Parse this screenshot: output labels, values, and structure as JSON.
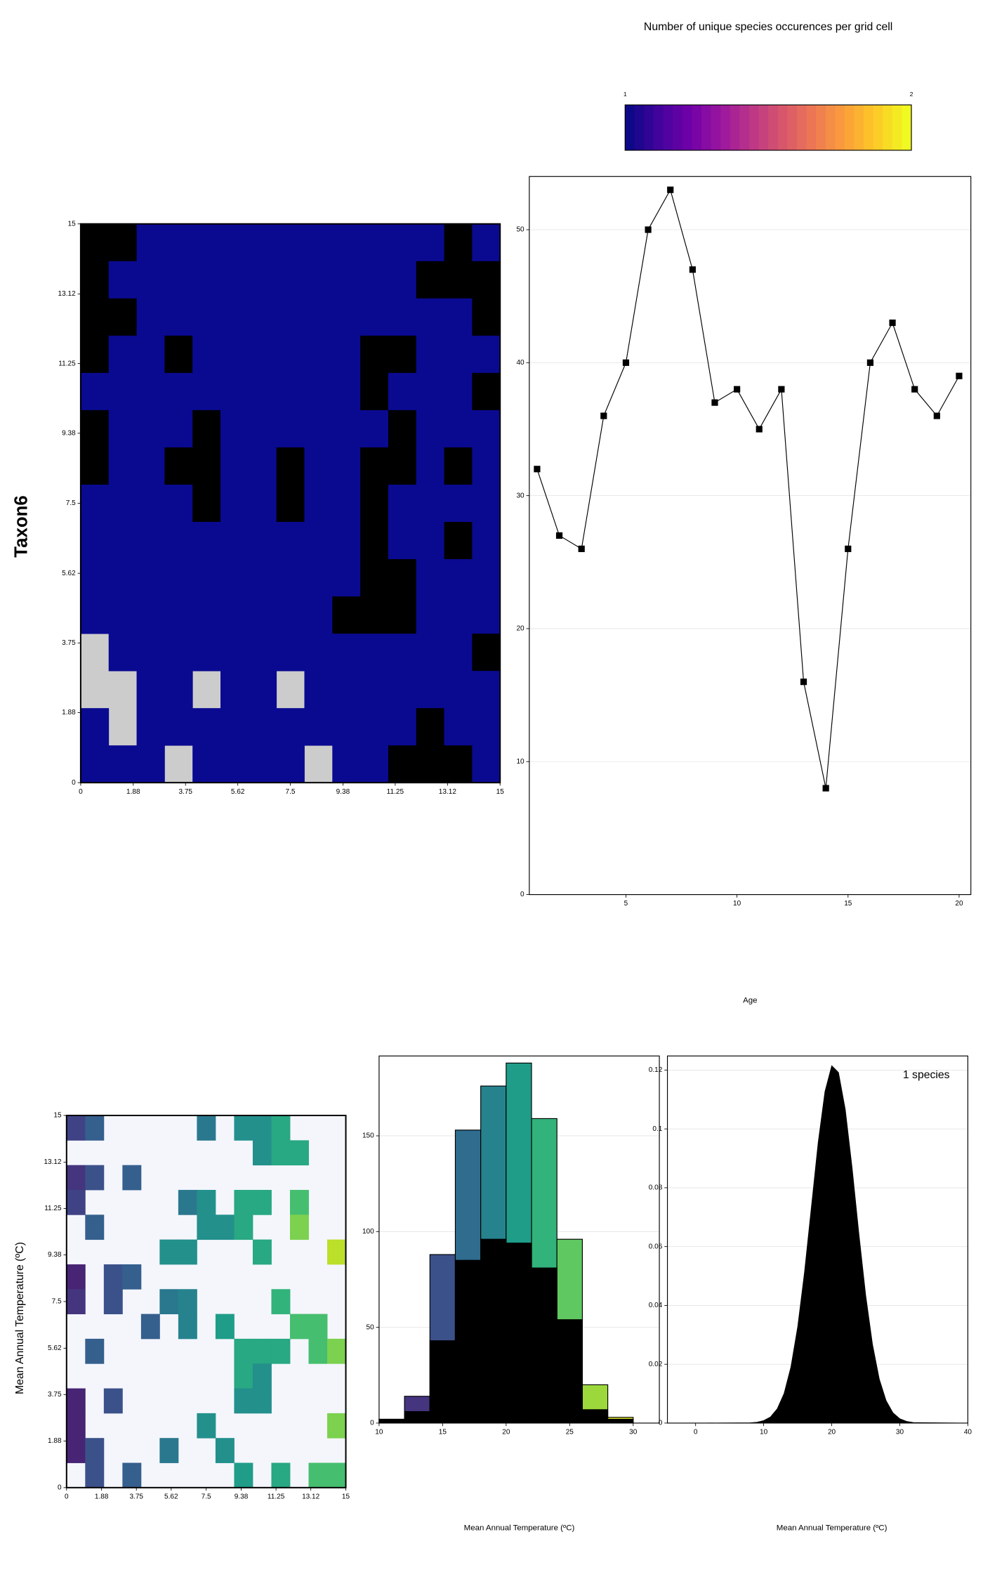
{
  "chart_data": [
    {
      "type": "heatmap",
      "row_label": "Taxon6",
      "xlim": [
        0,
        15
      ],
      "ylim": [
        0,
        15
      ],
      "xticks": [
        0,
        1.88,
        3.75,
        5.62,
        7.5,
        9.38,
        11.25,
        13.12,
        15
      ],
      "yticks": [
        0,
        1.88,
        3.75,
        5.62,
        7.5,
        9.38,
        11.25,
        13.12,
        15
      ],
      "cell_colors": [
        "#000000",
        "#0a0a91"
      ],
      "missing_color": "#cccccc",
      "cells": [
        [
          0,
          0,
          1,
          1,
          1,
          1,
          1,
          1,
          1,
          1,
          1,
          1,
          1,
          0,
          1
        ],
        [
          0,
          1,
          1,
          1,
          1,
          1,
          1,
          1,
          1,
          1,
          1,
          1,
          0,
          0,
          0
        ],
        [
          0,
          0,
          1,
          1,
          1,
          1,
          1,
          1,
          1,
          1,
          1,
          1,
          1,
          1,
          0
        ],
        [
          0,
          1,
          1,
          0,
          1,
          1,
          1,
          1,
          1,
          1,
          0,
          0,
          1,
          1,
          1
        ],
        [
          1,
          1,
          1,
          1,
          1,
          1,
          1,
          1,
          1,
          1,
          0,
          1,
          1,
          1,
          0
        ],
        [
          0,
          1,
          1,
          1,
          0,
          1,
          1,
          1,
          1,
          1,
          1,
          0,
          1,
          1,
          1
        ],
        [
          0,
          1,
          1,
          0,
          0,
          1,
          1,
          0,
          1,
          1,
          0,
          0,
          1,
          0,
          1
        ],
        [
          1,
          1,
          1,
          1,
          0,
          1,
          1,
          0,
          1,
          1,
          0,
          1,
          1,
          1,
          1
        ],
        [
          1,
          1,
          1,
          1,
          1,
          1,
          1,
          1,
          1,
          1,
          0,
          1,
          1,
          0,
          1
        ],
        [
          1,
          1,
          1,
          1,
          1,
          1,
          1,
          1,
          1,
          1,
          0,
          0,
          1,
          1,
          1
        ],
        [
          1,
          1,
          1,
          1,
          1,
          1,
          1,
          1,
          1,
          0,
          0,
          0,
          1,
          1,
          1
        ],
        [
          null,
          1,
          1,
          1,
          1,
          1,
          1,
          1,
          1,
          1,
          1,
          1,
          1,
          1,
          0
        ],
        [
          null,
          null,
          1,
          1,
          null,
          1,
          1,
          null,
          1,
          1,
          1,
          1,
          1,
          1,
          1
        ],
        [
          1,
          null,
          1,
          1,
          1,
          1,
          1,
          1,
          1,
          1,
          1,
          1,
          0,
          1,
          1
        ],
        [
          1,
          1,
          1,
          null,
          1,
          1,
          1,
          1,
          null,
          1,
          1,
          0,
          0,
          0,
          1
        ]
      ]
    },
    {
      "type": "colorbar",
      "title": "Number of unique species occurences per grid cell",
      "ticks": [
        1,
        2
      ],
      "colormap": "plasma"
    },
    {
      "type": "line",
      "xlabel": "Age",
      "color": "#000000",
      "grid": true,
      "x": [
        1,
        2,
        3,
        4,
        5,
        6,
        7,
        8,
        9,
        10,
        11,
        12,
        13,
        14,
        15,
        16,
        17,
        18,
        19,
        20
      ],
      "values": [
        32,
        27,
        26,
        36,
        40,
        50,
        53,
        47,
        37,
        38,
        35,
        38,
        16,
        8,
        26,
        40,
        43,
        38,
        36,
        39
      ],
      "xlim": [
        0.65,
        20.53
      ],
      "ylim": [
        0,
        54
      ],
      "xticks": [
        5,
        10,
        15,
        20
      ],
      "yticks": [
        0,
        10,
        20,
        30,
        40,
        50
      ]
    },
    {
      "type": "heatmap",
      "ylabel": "Mean Annual Temperature (ºC)",
      "xlim": [
        0,
        15
      ],
      "ylim": [
        0,
        15
      ],
      "xticks": [
        0,
        1.88,
        3.75,
        5.62,
        7.5,
        9.38,
        11.25,
        13.12,
        15
      ],
      "yticks": [
        0,
        1.88,
        3.75,
        5.62,
        7.5,
        9.38,
        11.25,
        13.12,
        15
      ],
      "colormap": "viridis",
      "color_range": [
        10,
        30
      ],
      "missing_color": "#f4f6fc",
      "cells": [
        [
          14,
          16,
          null,
          null,
          null,
          null,
          null,
          18,
          null,
          20,
          20,
          22,
          null,
          null,
          null
        ],
        [
          null,
          null,
          null,
          null,
          null,
          null,
          null,
          null,
          null,
          null,
          20,
          22,
          22,
          null,
          null
        ],
        [
          13,
          15,
          null,
          16,
          null,
          null,
          null,
          null,
          null,
          null,
          null,
          null,
          null,
          null,
          null
        ],
        [
          14,
          null,
          null,
          null,
          null,
          null,
          18,
          20,
          null,
          22,
          22,
          null,
          24,
          null,
          null
        ],
        [
          null,
          16,
          null,
          null,
          null,
          null,
          null,
          20,
          20,
          22,
          null,
          null,
          26,
          null,
          null
        ],
        [
          null,
          null,
          null,
          null,
          null,
          20,
          20,
          null,
          null,
          null,
          22,
          null,
          null,
          null,
          28
        ],
        [
          12,
          null,
          15,
          16,
          null,
          null,
          null,
          null,
          null,
          null,
          null,
          null,
          null,
          null,
          null
        ],
        [
          13,
          null,
          15,
          null,
          null,
          18,
          19,
          null,
          null,
          null,
          null,
          23,
          null,
          null,
          null
        ],
        [
          null,
          null,
          null,
          null,
          16,
          null,
          19,
          null,
          21,
          null,
          null,
          null,
          24,
          24,
          null
        ],
        [
          null,
          16,
          null,
          null,
          null,
          null,
          null,
          null,
          null,
          22,
          22,
          22,
          null,
          24,
          26
        ],
        [
          null,
          null,
          null,
          null,
          null,
          null,
          null,
          null,
          null,
          22,
          20,
          null,
          null,
          null,
          null
        ],
        [
          12,
          null,
          15,
          null,
          null,
          null,
          null,
          null,
          null,
          20,
          20,
          null,
          null,
          null,
          null
        ],
        [
          12,
          null,
          null,
          null,
          null,
          null,
          null,
          20,
          null,
          null,
          null,
          null,
          null,
          null,
          26
        ],
        [
          12,
          15,
          null,
          null,
          null,
          18,
          null,
          null,
          20,
          null,
          null,
          null,
          null,
          null,
          null
        ],
        [
          null,
          15,
          null,
          16,
          null,
          null,
          null,
          null,
          null,
          21,
          null,
          22,
          null,
          24,
          24
        ]
      ]
    },
    {
      "type": "histogram",
      "xlabel": "Mean Annual Temperature (ºC)",
      "grid": true,
      "colormap": "viridis",
      "color_range": [
        10,
        30
      ],
      "bins": [
        10,
        12,
        14,
        16,
        18,
        20,
        22,
        24,
        26,
        28,
        30
      ],
      "series": [
        {
          "values": [
            2,
            14,
            88,
            153,
            176,
            188,
            159,
            96,
            20,
            3
          ]
        },
        {
          "color": "#000000",
          "values": [
            2,
            6,
            43,
            85,
            96,
            94,
            81,
            54,
            7,
            2
          ]
        }
      ],
      "xlim": [
        10,
        32.06
      ],
      "ylim": [
        0,
        191.7
      ],
      "xticks": [
        10,
        15,
        20,
        25,
        30
      ],
      "yticks": [
        0,
        50,
        100,
        150
      ]
    },
    {
      "type": "area",
      "xlabel": "Mean Annual Temperature (ºC)",
      "annotation": "1 species",
      "color": "#000000",
      "grid": true,
      "x": [
        0,
        8,
        9,
        10,
        11,
        12,
        13,
        14,
        15,
        16,
        17,
        18,
        19,
        20,
        21,
        22,
        23,
        24,
        25,
        26,
        27,
        28,
        29,
        30,
        31,
        32,
        40
      ],
      "values": [
        0,
        0.0001,
        0.0003,
        0.00085,
        0.0021,
        0.0049,
        0.0101,
        0.0191,
        0.0328,
        0.0514,
        0.0733,
        0.0953,
        0.1127,
        0.1215,
        0.1192,
        0.1066,
        0.0868,
        0.0643,
        0.0434,
        0.0267,
        0.0149,
        0.0076,
        0.0035,
        0.0015,
        0.0006,
        0.0002,
        0
      ],
      "xlim": [
        -4.14,
        40
      ],
      "ylim": [
        0,
        0.1248
      ],
      "xticks": [
        0,
        10,
        20,
        30,
        40
      ],
      "yticks": [
        0,
        0.02,
        0.04,
        0.06,
        0.08,
        0.1,
        0.12
      ]
    }
  ]
}
